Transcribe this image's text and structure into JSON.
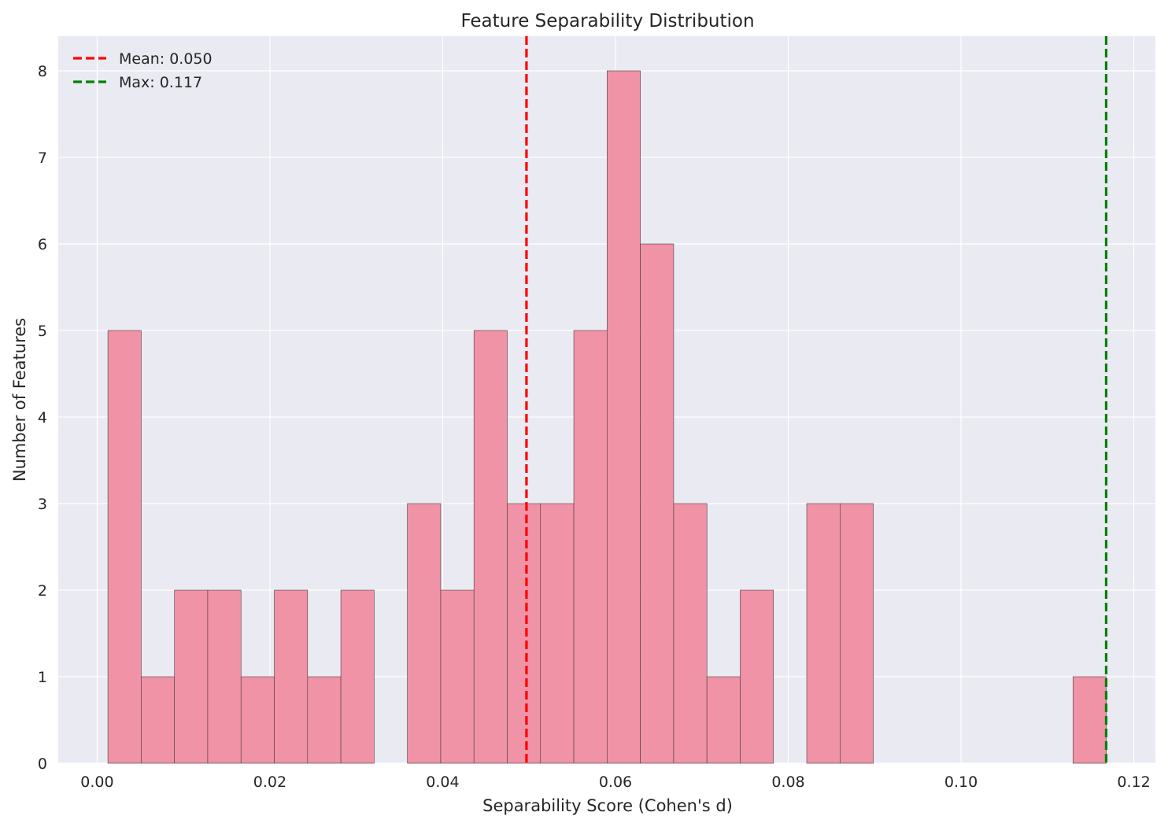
{
  "chart_data": {
    "type": "bar",
    "title": "Feature Separability Distribution",
    "xlabel": "Separability Score (Cohen's d)",
    "ylabel": "Number of Features",
    "xlim": [
      -0.0045,
      0.1225
    ],
    "ylim": [
      0,
      8.4
    ],
    "xticks": [
      0.0,
      0.02,
      0.04,
      0.06,
      0.08,
      0.1,
      0.12
    ],
    "xtick_labels": [
      "0.00",
      "0.02",
      "0.04",
      "0.06",
      "0.08",
      "0.10",
      "0.12"
    ],
    "yticks": [
      0,
      1,
      2,
      3,
      4,
      5,
      6,
      7,
      8
    ],
    "ytick_labels": [
      "0",
      "1",
      "2",
      "3",
      "4",
      "5",
      "6",
      "7",
      "8"
    ],
    "grid": true,
    "bin_start": 0.00125,
    "bin_width": 0.003852,
    "values": [
      5,
      1,
      2,
      2,
      1,
      2,
      1,
      2,
      0,
      3,
      2,
      5,
      3,
      3,
      5,
      8,
      6,
      3,
      1,
      2,
      0,
      3,
      3,
      0,
      0,
      0,
      0,
      0,
      0,
      1
    ],
    "bar_color": "#f093a6",
    "bar_edge_color": "#4a3a3a",
    "background_color": "#eaeaf2",
    "grid_color": "#ffffff",
    "lines": [
      {
        "label": "Mean: 0.050",
        "x": 0.0497,
        "color": "#ff0000",
        "style": "dashed"
      },
      {
        "label": "Max: 0.117",
        "x": 0.1168,
        "color": "#008000",
        "style": "dashed"
      }
    ],
    "legend_position": "top-left"
  }
}
